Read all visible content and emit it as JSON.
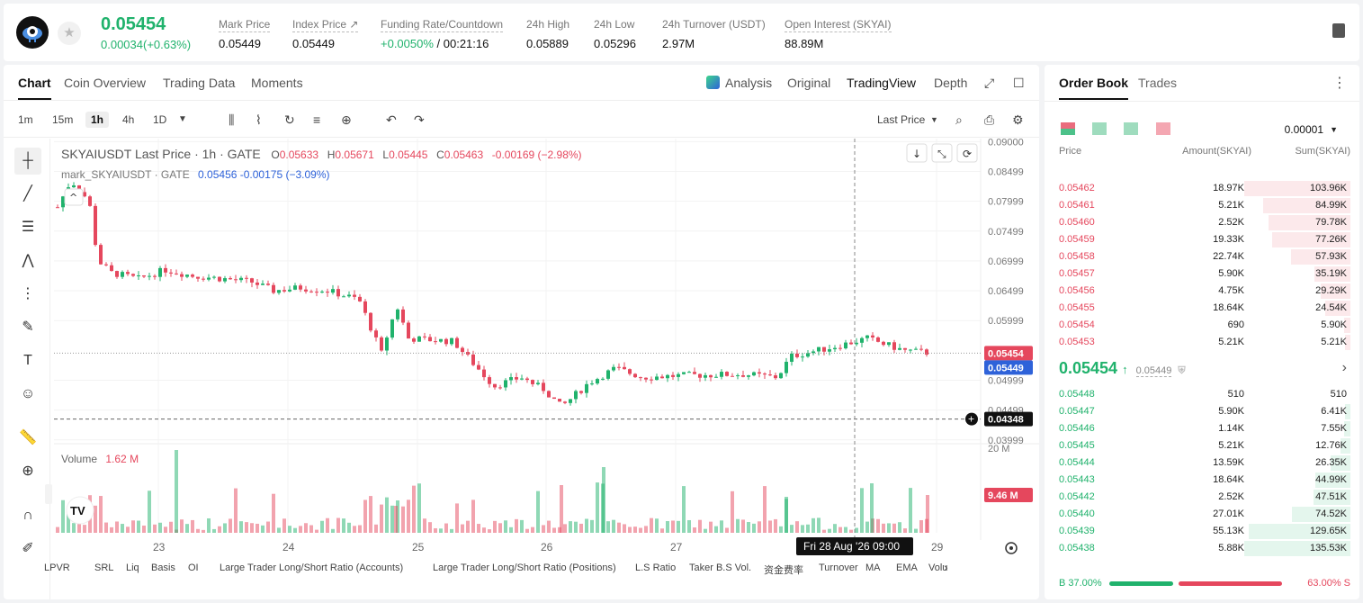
{
  "ticker": {
    "last_price": "0.05454",
    "change": "0.00034(+0.63%)",
    "stats": [
      {
        "label": "Mark Price",
        "value": "0.05449"
      },
      {
        "label": "Index Price ↗",
        "value": "0.05449"
      },
      {
        "label": "Funding Rate/Countdown",
        "value_green": "+0.0050%",
        "value": " / 00:21:16"
      },
      {
        "label": "24h High",
        "value": "0.05889"
      },
      {
        "label": "24h Low",
        "value": "0.05296"
      },
      {
        "label": "24h Turnover (USDT)",
        "value": "2.97M"
      },
      {
        "label": "Open Interest (SKYAI)",
        "value": "88.89M"
      }
    ]
  },
  "chart_tabs": [
    "Chart",
    "Coin Overview",
    "Trading Data",
    "Moments"
  ],
  "view_tabs": [
    "Analysis",
    "Original",
    "TradingView",
    "Depth"
  ],
  "timeframes": [
    "1m",
    "15m",
    "1h",
    "4h",
    "1D"
  ],
  "price_type_label": "Last Price",
  "legend": {
    "symbol": "SKYAIUSDT Last Price · 1h · GATE",
    "o_label": "O",
    "o": "0.05633",
    "h_label": "H",
    "h": "0.05671",
    "l_label": "L",
    "l": "0.05445",
    "c_label": "C",
    "c": "0.05463",
    "chg": "-0.00169 (−2.98%)",
    "mark_line": "mark_SKYAIUSDT · GATE",
    "mark_val": "0.05456 -0.00175 (−3.09%)"
  },
  "volume_legend": {
    "label": "Volume",
    "value": "1.62 M"
  },
  "price_axis": [
    "0.09000",
    "0.08499",
    "0.07999",
    "0.07499",
    "0.06999",
    "0.06499",
    "0.05999",
    "0.04999",
    "0.04499",
    "0.03999"
  ],
  "price_tags": {
    "last": "0.05454",
    "mark": "0.05449",
    "cursor": "0.04348",
    "vol": "9.46 M",
    "vol_axis": "20 M"
  },
  "time_axis": [
    "23",
    "24",
    "25",
    "26",
    "27",
    "29"
  ],
  "crosshair_time": "Fri 28 Aug '26   09:00",
  "indicators": [
    "LPVR",
    "SRL",
    "Liq",
    "Basis",
    "OI",
    "Large Trader Long/Short Ratio (Accounts)",
    "Large Trader Long/Short Ratio (Positions)",
    "L.S Ratio",
    "Taker B.S Vol.",
    "资金费率",
    "Turnover",
    "MA",
    "EMA",
    "Volu"
  ],
  "orderbook": {
    "tabs": [
      "Order Book",
      "Trades"
    ],
    "precision": "0.00001",
    "headers": [
      "Price",
      "Amount(SKYAI)",
      "Sum(SKYAI)"
    ],
    "asks": [
      {
        "price": "0.05462",
        "amount": "18.97K",
        "sum": "103.96K",
        "depth": 1.0
      },
      {
        "price": "0.05461",
        "amount": "5.21K",
        "sum": "84.99K",
        "depth": 0.82
      },
      {
        "price": "0.05460",
        "amount": "2.52K",
        "sum": "79.78K",
        "depth": 0.77
      },
      {
        "price": "0.05459",
        "amount": "19.33K",
        "sum": "77.26K",
        "depth": 0.74
      },
      {
        "price": "0.05458",
        "amount": "22.74K",
        "sum": "57.93K",
        "depth": 0.56
      },
      {
        "price": "0.05457",
        "amount": "5.90K",
        "sum": "35.19K",
        "depth": 0.34
      },
      {
        "price": "0.05456",
        "amount": "4.75K",
        "sum": "29.29K",
        "depth": 0.28
      },
      {
        "price": "0.05455",
        "amount": "18.64K",
        "sum": "24.54K",
        "depth": 0.24
      },
      {
        "price": "0.05454",
        "amount": "690",
        "sum": "5.90K",
        "depth": 0.06
      },
      {
        "price": "0.05453",
        "amount": "5.21K",
        "sum": "5.21K",
        "depth": 0.05
      }
    ],
    "last": "0.05454",
    "mark": "0.05449",
    "bids": [
      {
        "price": "0.05448",
        "amount": "510",
        "sum": "510",
        "depth": 0.0
      },
      {
        "price": "0.05447",
        "amount": "5.90K",
        "sum": "6.41K",
        "depth": 0.05
      },
      {
        "price": "0.05446",
        "amount": "1.14K",
        "sum": "7.55K",
        "depth": 0.06
      },
      {
        "price": "0.05445",
        "amount": "5.21K",
        "sum": "12.76K",
        "depth": 0.09
      },
      {
        "price": "0.05444",
        "amount": "13.59K",
        "sum": "26.35K",
        "depth": 0.19
      },
      {
        "price": "0.05443",
        "amount": "18.64K",
        "sum": "44.99K",
        "depth": 0.33
      },
      {
        "price": "0.05442",
        "amount": "2.52K",
        "sum": "47.51K",
        "depth": 0.35
      },
      {
        "price": "0.05440",
        "amount": "27.01K",
        "sum": "74.52K",
        "depth": 0.55
      },
      {
        "price": "0.05439",
        "amount": "55.13K",
        "sum": "129.65K",
        "depth": 0.96
      },
      {
        "price": "0.05438",
        "amount": "5.88K",
        "sum": "135.53K",
        "depth": 1.0
      }
    ],
    "buy_ratio": "B 37.00%",
    "sell_ratio": "63.00% S",
    "buy_fraction": 0.37
  },
  "colors": {
    "up": "#20b26c",
    "down": "#e5475d",
    "mark": "#2e62d9"
  }
}
